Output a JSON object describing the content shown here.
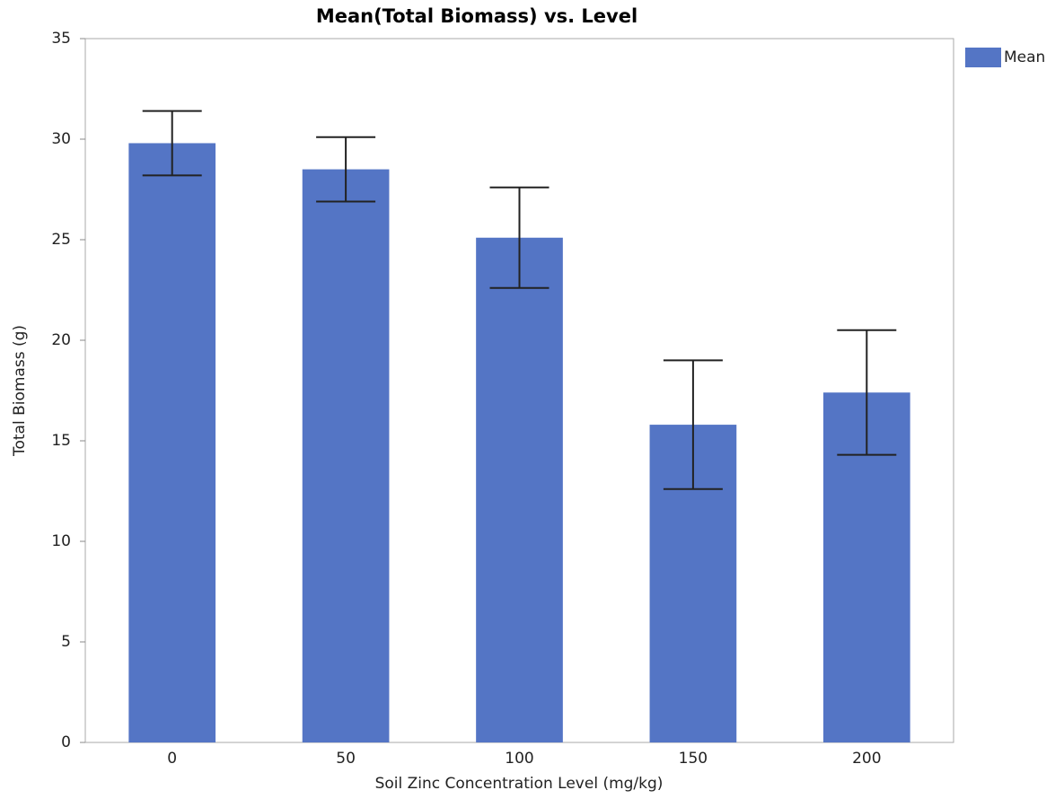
{
  "chart_data": {
    "type": "bar",
    "title": "Mean(Total Biomass) vs. Level",
    "x_label": "Soil Zinc Concentration Level (mg/kg)",
    "y_label": "Total Biomass (g)",
    "categories": [
      "0",
      "50",
      "100",
      "150",
      "200"
    ],
    "series": [
      {
        "name": "Mean",
        "color": "#5475c5",
        "values": [
          29.8,
          28.5,
          25.1,
          15.8,
          17.4
        ],
        "errors": [
          1.6,
          1.6,
          2.5,
          3.2,
          3.1
        ]
      }
    ],
    "ylim": [
      0,
      35
    ],
    "yticks": [
      0,
      5,
      10,
      15,
      20,
      25,
      30,
      35
    ],
    "grid": false,
    "legend": "right"
  }
}
